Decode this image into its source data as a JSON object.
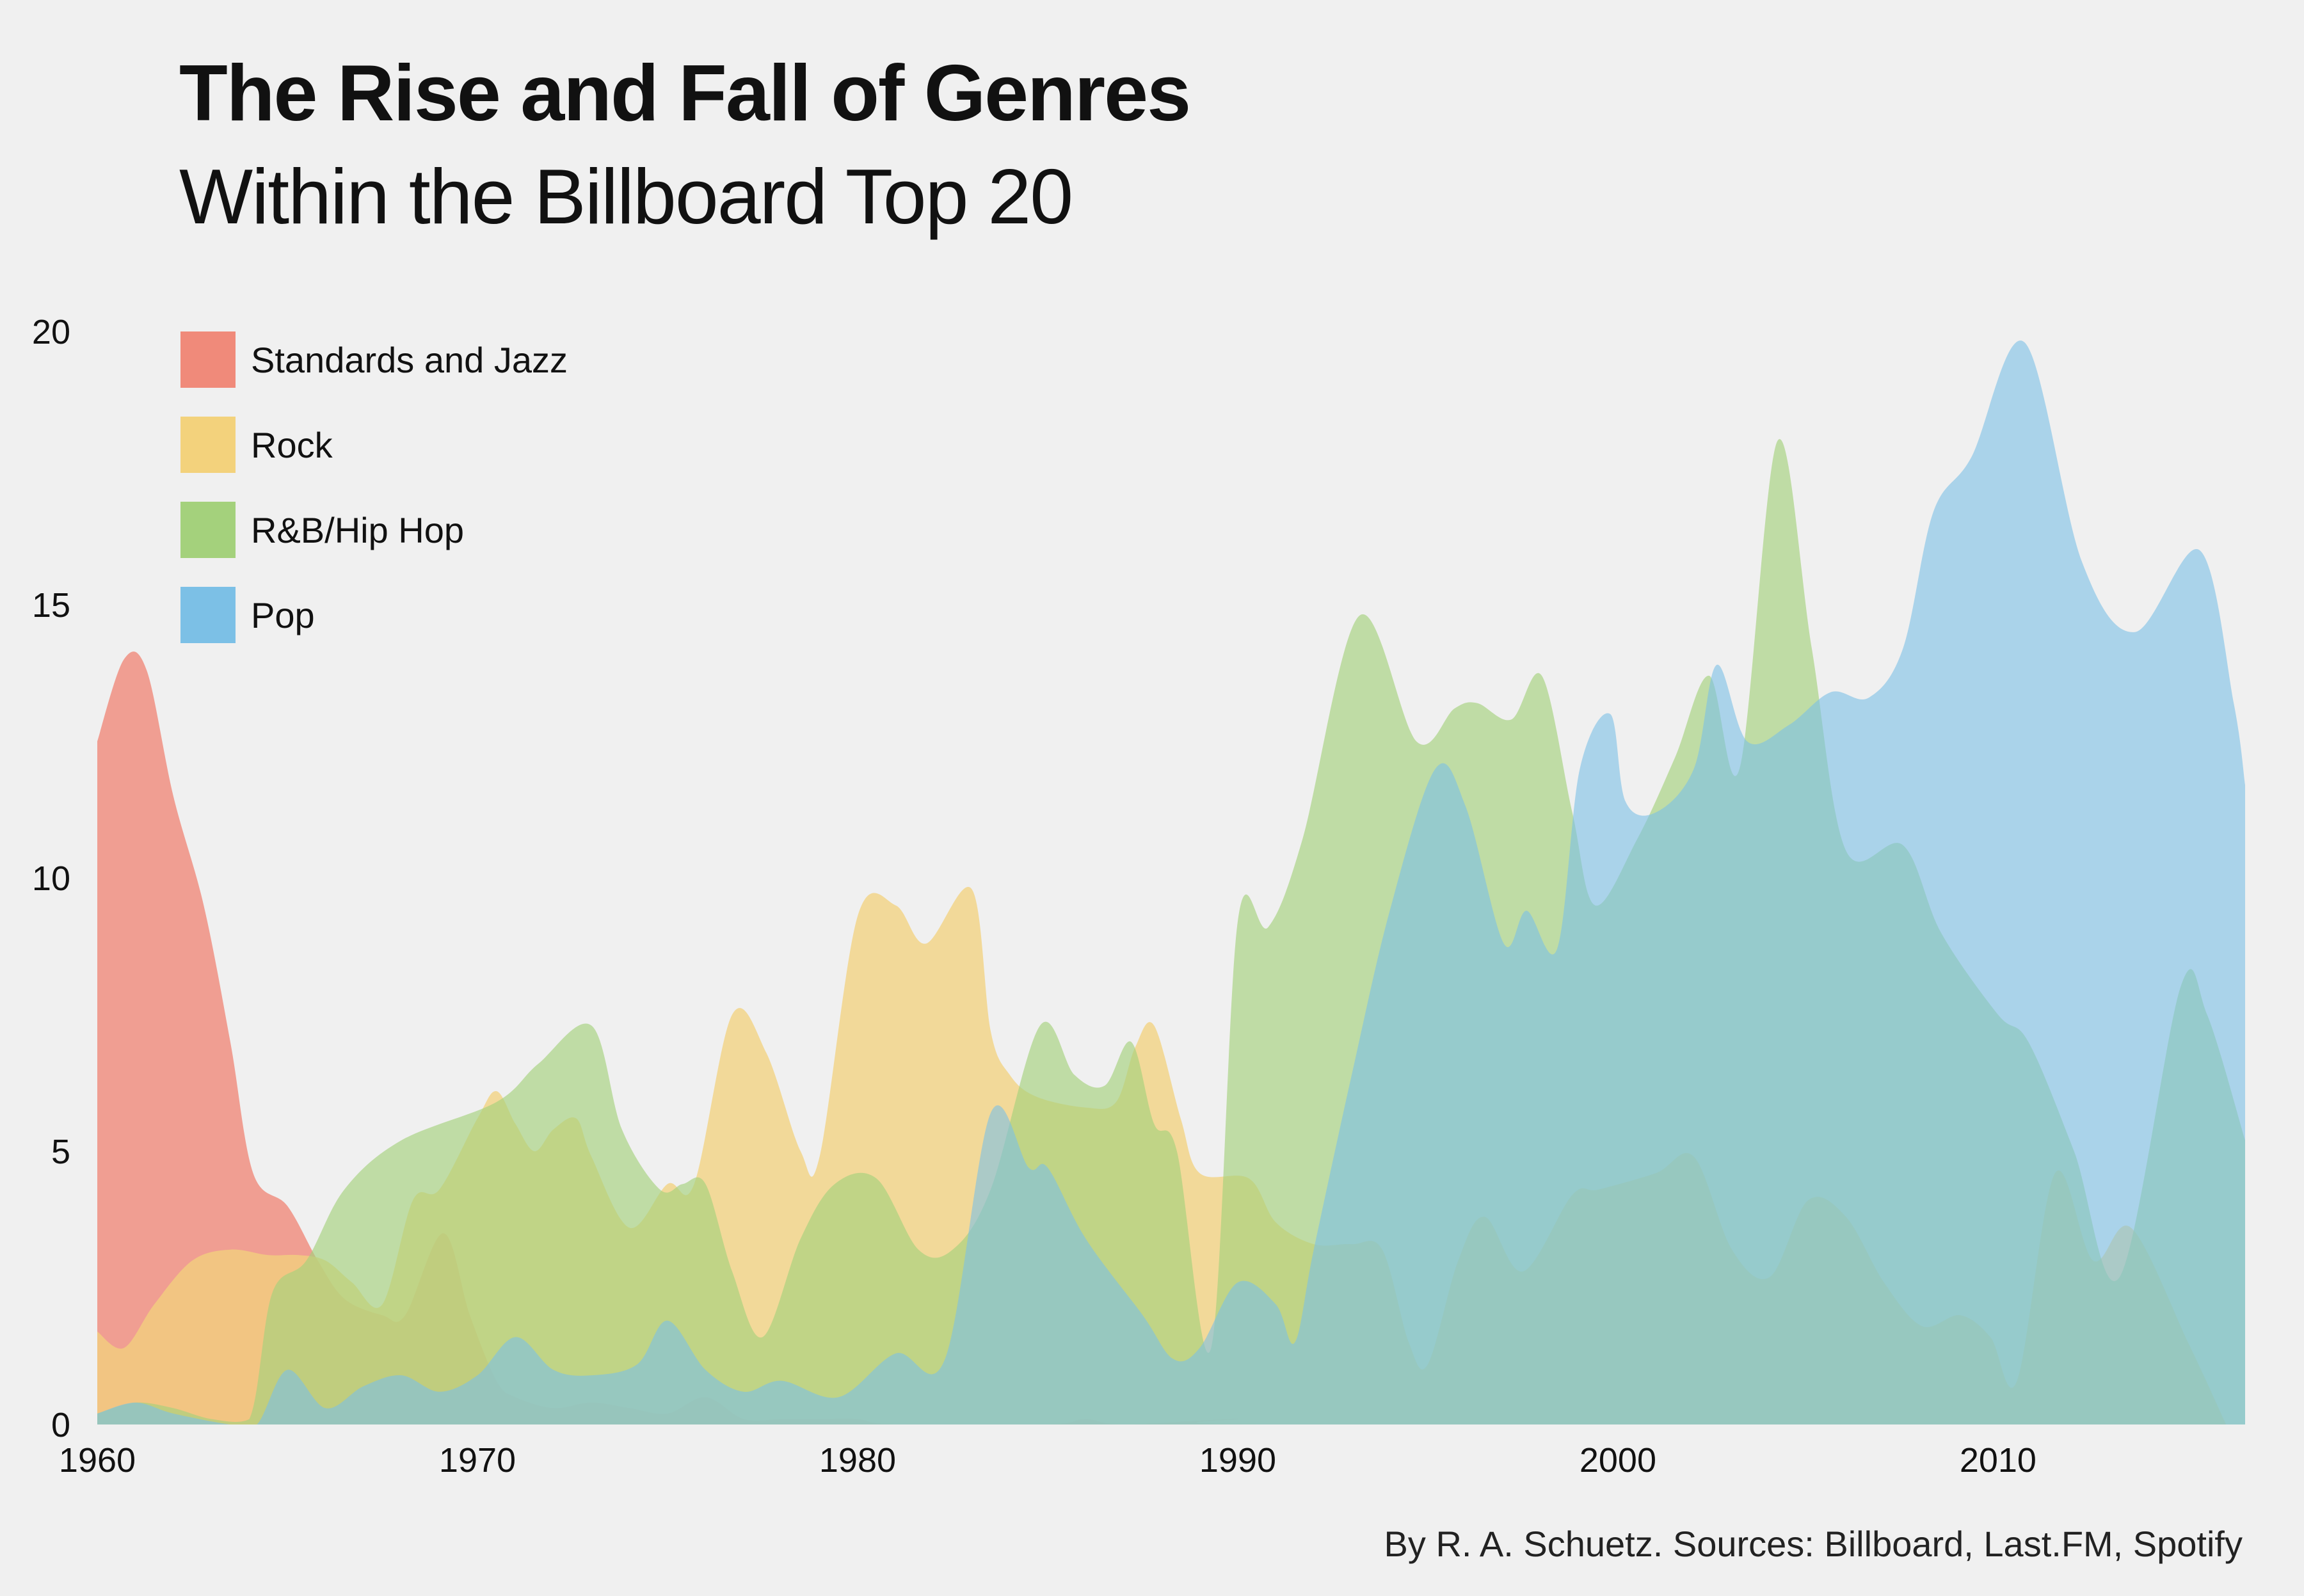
{
  "title": "The Rise and Fall of Genres",
  "subtitle": "Within the Billboard Top 20",
  "credit": "By R. A. Schuetz. Sources: Billboard, Last.FM, Spotify",
  "chart_data": {
    "type": "area",
    "title": "The Rise and Fall of Genres",
    "subtitle": "Within the Billboard Top 20",
    "xlim": [
      1960,
      2016.5
    ],
    "ylim": [
      0,
      20
    ],
    "x_ticks": [
      1960,
      1970,
      1980,
      1990,
      2000,
      2010
    ],
    "y_ticks": [
      0,
      5,
      10,
      15,
      20
    ],
    "grid": false,
    "legend_position": "top-left",
    "series": [
      {
        "name": "Standards and Jazz",
        "color": "#f08a7a",
        "fill_opacity": 0.8,
        "points": [
          [
            1960,
            12.5
          ],
          [
            1960.7,
            14.0
          ],
          [
            1961.3,
            13.8
          ],
          [
            1962,
            11.5
          ],
          [
            1962.8,
            9.5
          ],
          [
            1963.5,
            7.0
          ],
          [
            1964.1,
            4.6
          ],
          [
            1965,
            4.0
          ],
          [
            1965.8,
            3.0
          ],
          [
            1966.5,
            2.3
          ],
          [
            1967.5,
            2.0
          ],
          [
            1968.1,
            2.0
          ],
          [
            1969.1,
            3.5
          ],
          [
            1969.8,
            2.0
          ],
          [
            1970.5,
            0.8
          ],
          [
            1971,
            0.5
          ],
          [
            1972,
            0.3
          ],
          [
            1973,
            0.4
          ],
          [
            1974,
            0.3
          ],
          [
            1975,
            0.2
          ],
          [
            1976,
            0.5
          ],
          [
            1977,
            0.1
          ],
          [
            1978,
            0.1
          ],
          [
            1979,
            0.1
          ],
          [
            1980,
            0.1
          ],
          [
            1981,
            0.0
          ],
          [
            1985,
            0.0
          ],
          [
            1986,
            0.1
          ],
          [
            1987,
            0.0
          ],
          [
            1990,
            0.1
          ],
          [
            1991,
            0.0
          ],
          [
            2016.5,
            0.0
          ]
        ]
      },
      {
        "name": "Rock",
        "color": "#f3d27c",
        "fill_opacity": 0.75,
        "points": [
          [
            1960,
            1.7
          ],
          [
            1960.7,
            1.4
          ],
          [
            1961.5,
            2.2
          ],
          [
            1962.5,
            3.0
          ],
          [
            1963.5,
            3.2
          ],
          [
            1964.5,
            3.1
          ],
          [
            1965.3,
            3.1
          ],
          [
            1966,
            3.0
          ],
          [
            1966.7,
            2.6
          ],
          [
            1967.5,
            2.2
          ],
          [
            1968.3,
            4.1
          ],
          [
            1969,
            4.3
          ],
          [
            1970,
            5.6
          ],
          [
            1970.5,
            6.1
          ],
          [
            1971,
            5.5
          ],
          [
            1971.5,
            5.0
          ],
          [
            1972,
            5.4
          ],
          [
            1972.6,
            5.6
          ],
          [
            1973,
            4.9
          ],
          [
            1974,
            3.6
          ],
          [
            1975,
            4.4
          ],
          [
            1975.7,
            4.4
          ],
          [
            1976.7,
            7.5
          ],
          [
            1977.6,
            6.8
          ],
          [
            1978.5,
            5.0
          ],
          [
            1979,
            4.9
          ],
          [
            1980,
            9.3
          ],
          [
            1981,
            9.5
          ],
          [
            1981.8,
            8.8
          ],
          [
            1983,
            9.8
          ],
          [
            1983.5,
            7.2
          ],
          [
            1984,
            6.4
          ],
          [
            1984.7,
            6.0
          ],
          [
            1986,
            5.8
          ],
          [
            1986.8,
            5.9
          ],
          [
            1987.3,
            6.9
          ],
          [
            1987.8,
            7.3
          ],
          [
            1988.5,
            5.6
          ],
          [
            1989,
            4.6
          ],
          [
            1990.3,
            4.5
          ],
          [
            1991,
            3.7
          ],
          [
            1992,
            3.3
          ],
          [
            1993,
            3.3
          ],
          [
            1993.8,
            3.2
          ],
          [
            1994.5,
            1.5
          ],
          [
            1995,
            1.1
          ],
          [
            1995.8,
            3.0
          ],
          [
            1996.5,
            3.8
          ],
          [
            1997.5,
            2.8
          ],
          [
            1998.8,
            4.2
          ],
          [
            1999.5,
            4.3
          ],
          [
            2001,
            4.6
          ],
          [
            2002,
            4.9
          ],
          [
            2003,
            3.2
          ],
          [
            2004,
            2.7
          ],
          [
            2005,
            4.1
          ],
          [
            2006,
            3.8
          ],
          [
            2007,
            2.6
          ],
          [
            2008,
            1.8
          ],
          [
            2009,
            2.0
          ],
          [
            2009.8,
            1.6
          ],
          [
            2010.5,
            0.8
          ],
          [
            2011.5,
            4.6
          ],
          [
            2012.5,
            3.0
          ],
          [
            2013.5,
            3.6
          ],
          [
            2015,
            1.5
          ],
          [
            2016,
            0.0
          ]
        ]
      },
      {
        "name": "R&B/Hip Hop",
        "color": "#a4d17c",
        "fill_opacity": 0.65,
        "points": [
          [
            1960,
            0.2
          ],
          [
            1961,
            0.4
          ],
          [
            1962,
            0.3
          ],
          [
            1963,
            0.1
          ],
          [
            1964,
            0.1
          ],
          [
            1964.6,
            2.4
          ],
          [
            1965.5,
            3.0
          ],
          [
            1966.5,
            4.3
          ],
          [
            1968,
            5.2
          ],
          [
            1970.5,
            5.9
          ],
          [
            1971.6,
            6.6
          ],
          [
            1973,
            7.3
          ],
          [
            1973.8,
            5.4
          ],
          [
            1974.8,
            4.3
          ],
          [
            1975.4,
            4.4
          ],
          [
            1976,
            4.4
          ],
          [
            1976.7,
            2.8
          ],
          [
            1977.5,
            1.6
          ],
          [
            1978.5,
            3.4
          ],
          [
            1979.4,
            4.4
          ],
          [
            1980.5,
            4.5
          ],
          [
            1981.6,
            3.2
          ],
          [
            1982.5,
            3.2
          ],
          [
            1983.5,
            4.3
          ],
          [
            1984.8,
            7.3
          ],
          [
            1985.7,
            6.4
          ],
          [
            1986.5,
            6.2
          ],
          [
            1987.2,
            7.0
          ],
          [
            1987.8,
            5.5
          ],
          [
            1988.4,
            5.0
          ],
          [
            1989.3,
            1.4
          ],
          [
            1990,
            9.2
          ],
          [
            1990.8,
            9.1
          ],
          [
            1991.7,
            10.7
          ],
          [
            1993.2,
            14.8
          ],
          [
            1994.7,
            12.5
          ],
          [
            1995.7,
            13.1
          ],
          [
            1996.3,
            13.2
          ],
          [
            1997.2,
            12.9
          ],
          [
            1998,
            13.7
          ],
          [
            1998.8,
            11.2
          ],
          [
            1999.4,
            9.5
          ],
          [
            2000.5,
            10.7
          ],
          [
            2001.5,
            12.2
          ],
          [
            2002.4,
            13.7
          ],
          [
            2003.2,
            12.0
          ],
          [
            2004.2,
            18.0
          ],
          [
            2005.1,
            14.2
          ],
          [
            2006,
            10.5
          ],
          [
            2007.5,
            10.6
          ],
          [
            2008.5,
            9.0
          ],
          [
            2010,
            7.5
          ],
          [
            2010.8,
            7.0
          ],
          [
            2012,
            5.0
          ],
          [
            2013.2,
            2.7
          ],
          [
            2014.8,
            8.0
          ],
          [
            2015.5,
            7.5
          ],
          [
            2016.5,
            5.2
          ]
        ]
      },
      {
        "name": "Pop",
        "color": "#7cc0e6",
        "fill_opacity": 0.6,
        "points": [
          [
            1960,
            0.2
          ],
          [
            1961,
            0.4
          ],
          [
            1962,
            0.2
          ],
          [
            1963.5,
            0.0
          ],
          [
            1964.2,
            0.0
          ],
          [
            1965,
            1.0
          ],
          [
            1966,
            0.3
          ],
          [
            1967,
            0.7
          ],
          [
            1968,
            0.9
          ],
          [
            1969,
            0.6
          ],
          [
            1970,
            0.9
          ],
          [
            1971,
            1.6
          ],
          [
            1972,
            1.0
          ],
          [
            1973,
            0.9
          ],
          [
            1974.2,
            1.1
          ],
          [
            1975,
            1.9
          ],
          [
            1976,
            1.0
          ],
          [
            1977,
            0.6
          ],
          [
            1978,
            0.8
          ],
          [
            1979.5,
            0.5
          ],
          [
            1981,
            1.3
          ],
          [
            1982.3,
            1.2
          ],
          [
            1983.5,
            5.7
          ],
          [
            1984.5,
            4.7
          ],
          [
            1985,
            4.7
          ],
          [
            1986,
            3.4
          ],
          [
            1987.5,
            2.0
          ],
          [
            1988.3,
            1.2
          ],
          [
            1989,
            1.4
          ],
          [
            1990,
            2.6
          ],
          [
            1991,
            2.2
          ],
          [
            1991.5,
            1.5
          ],
          [
            1992,
            3.2
          ],
          [
            1993,
            6.4
          ],
          [
            1994,
            9.4
          ],
          [
            1995.2,
            12.0
          ],
          [
            1996,
            11.3
          ],
          [
            1997,
            8.8
          ],
          [
            1997.6,
            9.4
          ],
          [
            1998.4,
            8.7
          ],
          [
            1999,
            12.0
          ],
          [
            1999.8,
            13.0
          ],
          [
            2000.2,
            11.4
          ],
          [
            2001,
            11.2
          ],
          [
            2002,
            12.0
          ],
          [
            2002.6,
            13.9
          ],
          [
            2003.4,
            12.5
          ],
          [
            2004.5,
            12.8
          ],
          [
            2005.6,
            13.4
          ],
          [
            2006.6,
            13.3
          ],
          [
            2007.5,
            14.2
          ],
          [
            2008.3,
            16.7
          ],
          [
            2009.3,
            17.7
          ],
          [
            2010.7,
            19.8
          ],
          [
            2012.2,
            15.8
          ],
          [
            2013.6,
            14.5
          ],
          [
            2015.3,
            16.0
          ],
          [
            2016.2,
            13.2
          ],
          [
            2016.5,
            11.7
          ]
        ]
      }
    ]
  }
}
